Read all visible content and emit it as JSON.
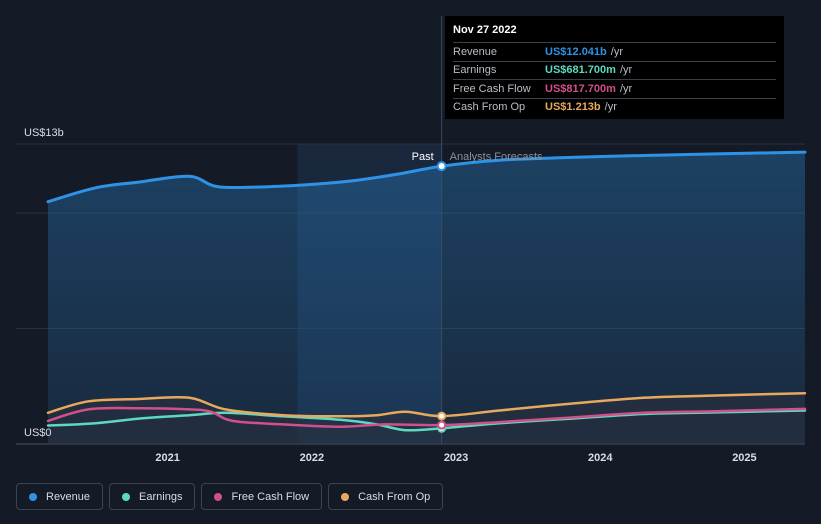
{
  "tooltip": {
    "date": "Nov 27 2022",
    "rows": [
      {
        "label": "Revenue",
        "value": "US$12.041b",
        "unit": "/yr",
        "color": "#2e93e6"
      },
      {
        "label": "Earnings",
        "value": "US$681.700m",
        "unit": "/yr",
        "color": "#5ed8c1"
      },
      {
        "label": "Free Cash Flow",
        "value": "US$817.700m",
        "unit": "/yr",
        "color": "#d1508a"
      },
      {
        "label": "Cash From Op",
        "value": "US$1.213b",
        "unit": "/yr",
        "color": "#e8a85e"
      }
    ]
  },
  "legend": [
    {
      "label": "Revenue",
      "color": "#2e93e6"
    },
    {
      "label": "Earnings",
      "color": "#5ed8c1"
    },
    {
      "label": "Free Cash Flow",
      "color": "#d1508a"
    },
    {
      "label": "Cash From Op",
      "color": "#e8a85e"
    }
  ],
  "chart_data": {
    "type": "line",
    "y_max_label": "US$13b",
    "y_min_label": "US$0",
    "ylim": [
      0,
      13
    ],
    "xlim": [
      2020.17,
      2025.42
    ],
    "x_ticks": [
      2021,
      2022,
      2023,
      2024,
      2025
    ],
    "x_tick_labels": [
      "2021",
      "2022",
      "2023",
      "2024",
      "2025"
    ],
    "past_label": "Past",
    "forecast_label": "Analysts Forecasts",
    "divider_x": 2022.9,
    "highlight_start_x": 2021.9,
    "marker_x": 2022.9,
    "series": [
      {
        "name": "Revenue",
        "color": "#2e93e6",
        "area": true,
        "points": [
          [
            2020.17,
            10.5
          ],
          [
            2020.5,
            11.1
          ],
          [
            2020.8,
            11.35
          ],
          [
            2021.15,
            11.6
          ],
          [
            2021.35,
            11.15
          ],
          [
            2021.7,
            11.15
          ],
          [
            2022.0,
            11.25
          ],
          [
            2022.3,
            11.42
          ],
          [
            2022.6,
            11.7
          ],
          [
            2022.9,
            12.04
          ],
          [
            2023.3,
            12.3
          ],
          [
            2023.8,
            12.42
          ],
          [
            2024.3,
            12.5
          ],
          [
            2024.8,
            12.57
          ],
          [
            2025.42,
            12.65
          ]
        ]
      },
      {
        "name": "Earnings",
        "color": "#5ed8c1",
        "points": [
          [
            2020.17,
            0.8
          ],
          [
            2020.5,
            0.9
          ],
          [
            2020.8,
            1.1
          ],
          [
            2021.15,
            1.25
          ],
          [
            2021.4,
            1.35
          ],
          [
            2021.8,
            1.2
          ],
          [
            2022.2,
            1.05
          ],
          [
            2022.45,
            0.85
          ],
          [
            2022.65,
            0.6
          ],
          [
            2022.9,
            0.68
          ],
          [
            2023.3,
            0.9
          ],
          [
            2023.8,
            1.1
          ],
          [
            2024.3,
            1.3
          ],
          [
            2024.8,
            1.37
          ],
          [
            2025.42,
            1.45
          ]
        ]
      },
      {
        "name": "Free Cash Flow",
        "color": "#d1508a",
        "points": [
          [
            2020.17,
            1.0
          ],
          [
            2020.45,
            1.5
          ],
          [
            2020.8,
            1.55
          ],
          [
            2021.15,
            1.5
          ],
          [
            2021.3,
            1.4
          ],
          [
            2021.45,
            1.0
          ],
          [
            2021.8,
            0.85
          ],
          [
            2022.2,
            0.75
          ],
          [
            2022.5,
            0.85
          ],
          [
            2022.9,
            0.82
          ],
          [
            2023.3,
            0.95
          ],
          [
            2023.8,
            1.15
          ],
          [
            2024.3,
            1.35
          ],
          [
            2024.8,
            1.42
          ],
          [
            2025.42,
            1.52
          ]
        ]
      },
      {
        "name": "Cash From Op",
        "color": "#e8a85e",
        "points": [
          [
            2020.17,
            1.35
          ],
          [
            2020.45,
            1.85
          ],
          [
            2020.8,
            1.95
          ],
          [
            2021.15,
            2.0
          ],
          [
            2021.4,
            1.5
          ],
          [
            2021.8,
            1.25
          ],
          [
            2022.2,
            1.2
          ],
          [
            2022.45,
            1.25
          ],
          [
            2022.65,
            1.4
          ],
          [
            2022.9,
            1.21
          ],
          [
            2023.3,
            1.45
          ],
          [
            2023.8,
            1.75
          ],
          [
            2024.3,
            2.0
          ],
          [
            2024.8,
            2.1
          ],
          [
            2025.42,
            2.2
          ]
        ]
      }
    ]
  }
}
